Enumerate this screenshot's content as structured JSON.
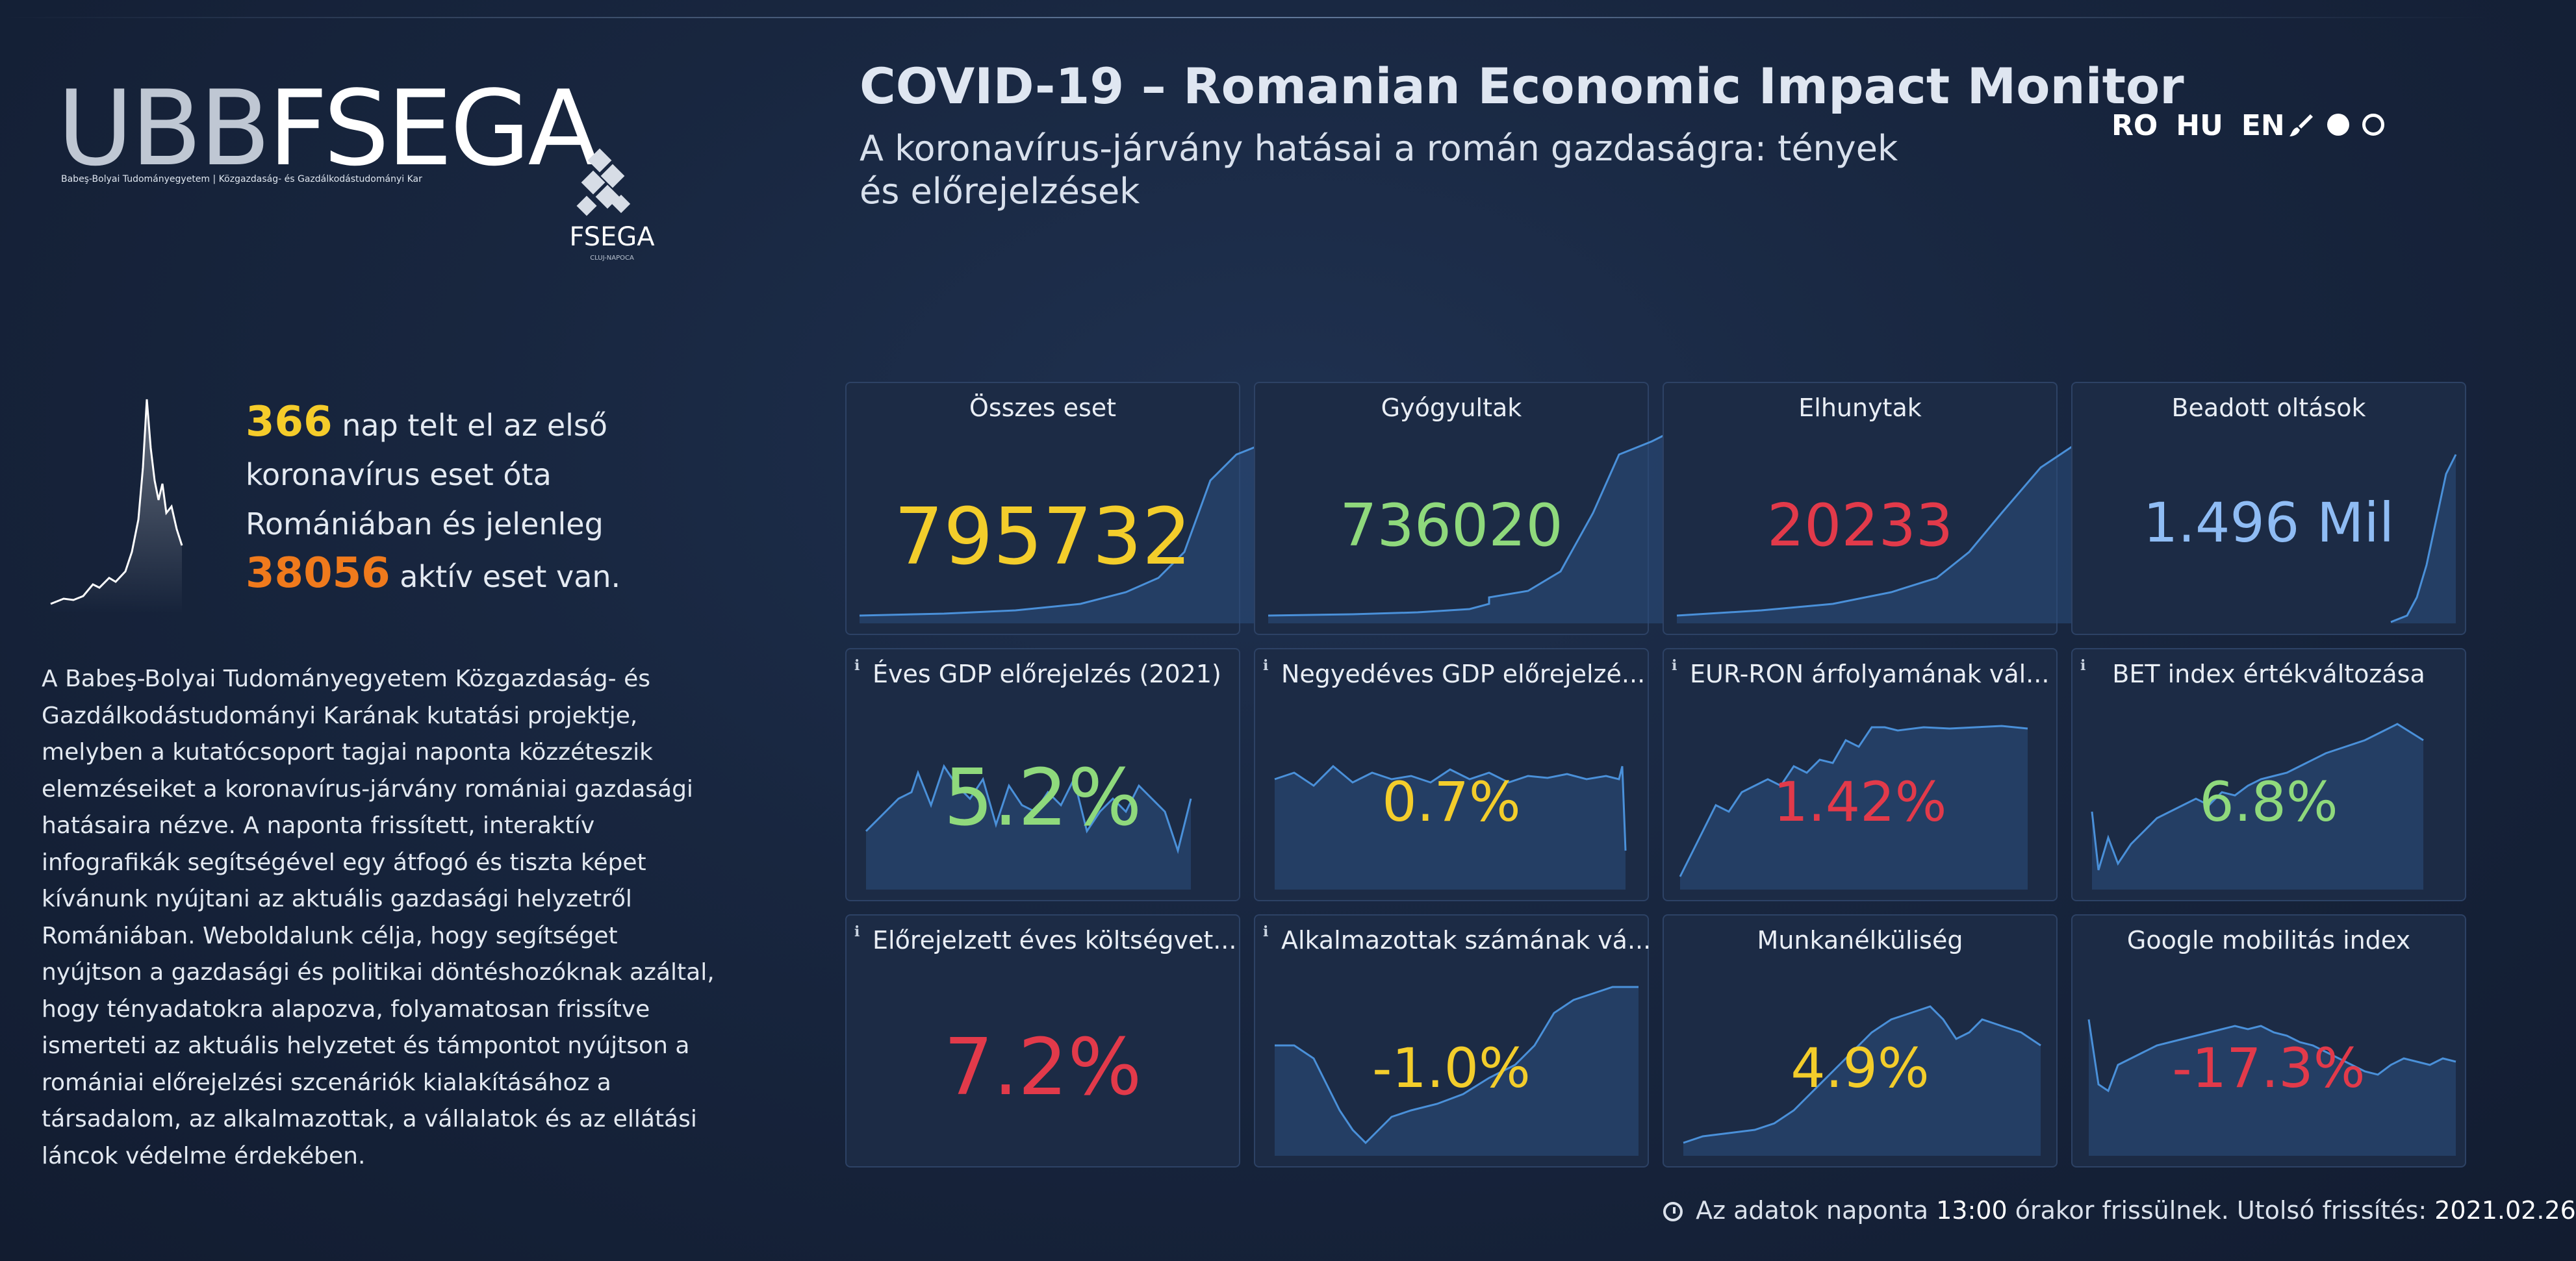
{
  "logo": {
    "ubb": "UBB",
    "fsega": "FSEGA",
    "subtitle": "Babeş-Bolyai Tudományegyetem | Közgazdaság- és Gazdálkodástudományi Kar",
    "emblem_text": "FSEGA",
    "emblem_sub": "CLUJ-NAPOCA"
  },
  "header": {
    "title": "COVID-19 – Romanian Economic Impact Monitor",
    "subtitle": "A koronavírus-járvány hatásai a román gazdaságra: tények és előrejelzések"
  },
  "languages": [
    "RO",
    "HU",
    "EN"
  ],
  "theme": {
    "icon": "paintbrush-icon"
  },
  "summary": {
    "days": "366",
    "days_text": " nap telt el az első koronavírus eset óta Romániában és jelenleg ",
    "active": "38056",
    "active_text": " aktív eset van."
  },
  "about": "A Babeş-Bolyai Tudományegyetem Közgazdaság- és Gazdálkodástudományi Karának kutatási projektje, melyben a kutatócsoport tagjai naponta közzéteszik elemzéseiket a koronavírus-járvány romániai gazdasági hatásaira nézve. A naponta frissített, interaktív infografikák segítségével egy átfogó és tiszta képet kívánunk nyújtani az aktuális gazdasági helyzetről Romániában. Weboldalunk célja, hogy segítséget nyújtson a gazdasági és politikai döntéshozóknak azáltal, hogy tényadatokra alapozva, folyamatosan frissítve ismerteti az aktuális helyzetet és támpontot nyújtson a romániai előrejelzési szcenáriók kialakításához a társadalom, az alkalmazottak, a vállalatok és az ellátási láncok védelme érdekében.",
  "cards": [
    {
      "title": "Összes eset",
      "value": "795732",
      "color": "#f3cd2b",
      "info": ""
    },
    {
      "title": "Gyógyultak",
      "value": "736020",
      "color": "#8fd97c",
      "info": ""
    },
    {
      "title": "Elhunytak",
      "value": "20233",
      "color": "#e23a4a",
      "info": ""
    },
    {
      "title": "Beadott oltások",
      "value": "1.496 Mil",
      "color": "#8fbcf4",
      "info": ""
    },
    {
      "title": "Éves GDP előrejelzés (2021)",
      "value": "5.2%",
      "color": "#8fd97c",
      "info": "i"
    },
    {
      "title": "Negyedéves GDP előrejelzé...",
      "value": "0.7%",
      "color": "#f3cd2b",
      "info": "i"
    },
    {
      "title": "EUR-RON árfolyamának vál...",
      "value": "1.42%",
      "color": "#e23a4a",
      "info": "i"
    },
    {
      "title": "BET index értékváltozása",
      "value": "6.8%",
      "color": "#8fd97c",
      "info": "i"
    },
    {
      "title": "Előrejelzett éves költségvet...",
      "value": "7.2%",
      "color": "#e23a4a",
      "info": "i"
    },
    {
      "title": "Alkalmazottak számának vá...",
      "value": "-1.0%",
      "color": "#f3cd2b",
      "info": "i"
    },
    {
      "title": "Munkanélküliség",
      "value": "4.9%",
      "color": "#f3cd2b",
      "info": ""
    },
    {
      "title": "Google mobilitás index",
      "value": "-17.3%",
      "color": "#e23a4a",
      "info": ""
    }
  ],
  "footer": {
    "prefix": " Az adatok naponta ",
    "time": "13:00",
    "middle": " órakor frissülnek. Utolsó frissítés: ",
    "date": "2021.02.26"
  }
}
